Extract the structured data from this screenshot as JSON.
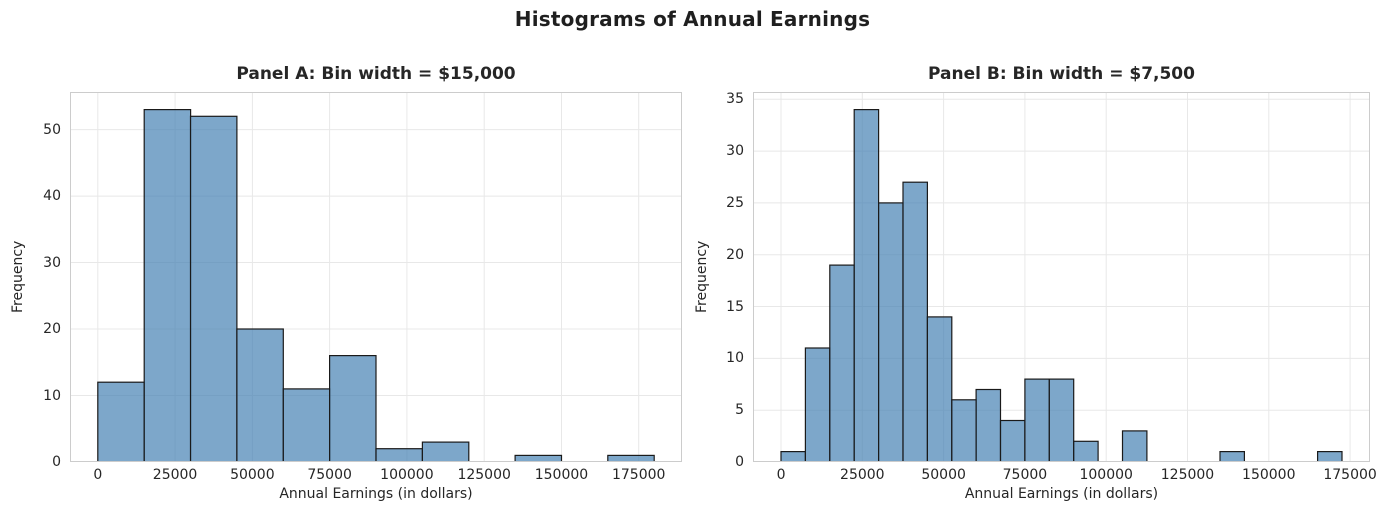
{
  "figure_title": "Histograms of Annual Earnings",
  "colors": {
    "background": "#ffffff",
    "bar_fill": "#4682b4",
    "bar_fill_opacity": 0.7,
    "bar_edge": "#1a1a1a",
    "grid": "#e8e8e8",
    "spine": "#cccccc",
    "text": "#262626"
  },
  "chart_data": [
    {
      "type": "bar",
      "subtype": "histogram",
      "title": "Panel A: Bin width = $15,000",
      "xlabel": "Annual Earnings (in dollars)",
      "ylabel": "Frequency",
      "bin_start": 0,
      "bin_width": 15000,
      "bin_edges": [
        0,
        15000,
        30000,
        45000,
        60000,
        75000,
        90000,
        105000,
        120000,
        135000,
        150000,
        165000,
        180000
      ],
      "frequencies": [
        12,
        53,
        52,
        20,
        11,
        16,
        2,
        3,
        0,
        1,
        0,
        1
      ],
      "total_count": 171,
      "xticks": [
        0,
        25000,
        50000,
        75000,
        100000,
        125000,
        150000,
        175000
      ],
      "yticks": [
        0,
        10,
        20,
        30,
        40,
        50
      ],
      "xlim": [
        -9000,
        189000
      ],
      "ylim": [
        0,
        55.65
      ],
      "grid": true,
      "legend": null
    },
    {
      "type": "bar",
      "subtype": "histogram",
      "title": "Panel B: Bin width = $7,500",
      "xlabel": "Annual Earnings (in dollars)",
      "ylabel": "Frequency",
      "bin_start": 0,
      "bin_width": 7500,
      "bin_edges": [
        0,
        7500,
        15000,
        22500,
        30000,
        37500,
        45000,
        52500,
        60000,
        67500,
        75000,
        82500,
        90000,
        97500,
        105000,
        112500,
        120000,
        127500,
        135000,
        142500,
        150000,
        157500,
        165000,
        172500
      ],
      "frequencies": [
        1,
        11,
        19,
        34,
        25,
        27,
        14,
        6,
        7,
        4,
        8,
        8,
        2,
        0,
        3,
        0,
        0,
        0,
        1,
        0,
        0,
        0,
        1
      ],
      "total_count": 171,
      "xticks": [
        0,
        25000,
        50000,
        75000,
        100000,
        125000,
        150000,
        175000
      ],
      "yticks": [
        0,
        5,
        10,
        15,
        20,
        25,
        30,
        35
      ],
      "xlim": [
        -8625,
        181125
      ],
      "ylim": [
        0,
        35.7
      ],
      "grid": true,
      "legend": null
    }
  ]
}
